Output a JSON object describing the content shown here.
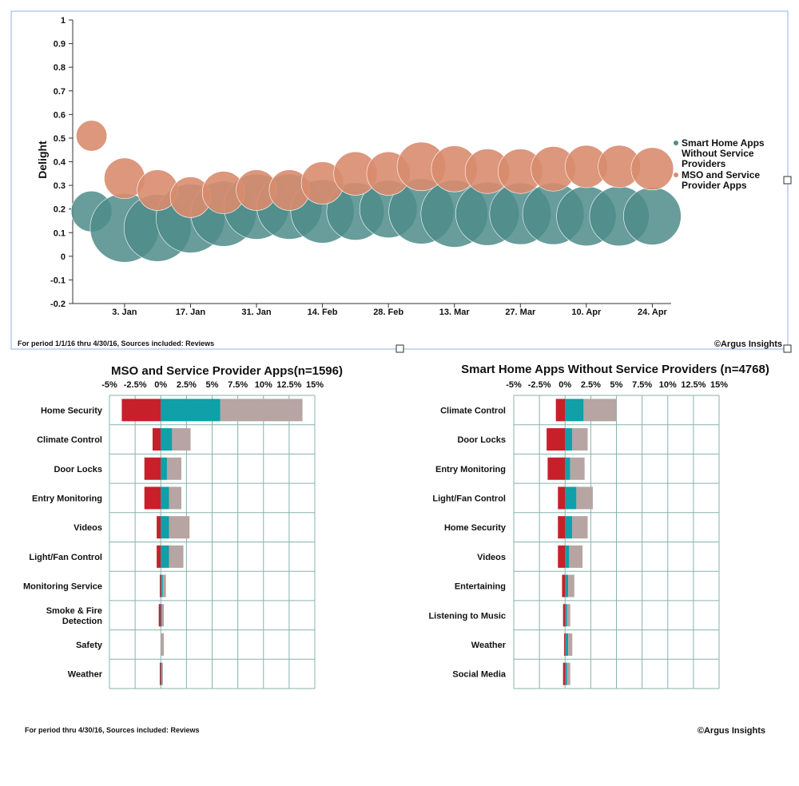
{
  "chart_data": [
    {
      "type": "scatter",
      "ylabel": "Delight",
      "yticks": [
        "1",
        "0.9",
        "0.8",
        "0.7",
        "0.6",
        "0.5",
        "0.4",
        "0.3",
        "0.2",
        "0.1",
        "0",
        "-0.1",
        "-0.2"
      ],
      "xticks": [
        "3. Jan",
        "17. Jan",
        "31. Jan",
        "14. Feb",
        "28. Feb",
        "13. Mar",
        "27. Mar",
        "10. Apr",
        "24. Apr"
      ],
      "ylim": [
        -0.2,
        1
      ],
      "grid": false,
      "legend_placement": "right",
      "series": [
        {
          "name": "Smart Home Apps Without Service Providers",
          "color": "#4e8c8a",
          "points": [
            {
              "x": "2015-12-27",
              "y": 0.19,
              "size": 0.35
            },
            {
              "x": "2016-01-03",
              "y": 0.12,
              "size": 1.0
            },
            {
              "x": "2016-01-10",
              "y": 0.12,
              "size": 0.95
            },
            {
              "x": "2016-01-17",
              "y": 0.16,
              "size": 1.0
            },
            {
              "x": "2016-01-24",
              "y": 0.18,
              "size": 0.9
            },
            {
              "x": "2016-01-31",
              "y": 0.21,
              "size": 0.9
            },
            {
              "x": "2016-02-07",
              "y": 0.21,
              "size": 0.9
            },
            {
              "x": "2016-02-14",
              "y": 0.19,
              "size": 0.85
            },
            {
              "x": "2016-02-21",
              "y": 0.19,
              "size": 0.7
            },
            {
              "x": "2016-02-28",
              "y": 0.2,
              "size": 0.7
            },
            {
              "x": "2016-03-06",
              "y": 0.19,
              "size": 0.9
            },
            {
              "x": "2016-03-13",
              "y": 0.18,
              "size": 0.95
            },
            {
              "x": "2016-03-20",
              "y": 0.18,
              "size": 0.85
            },
            {
              "x": "2016-03-27",
              "y": 0.18,
              "size": 0.8
            },
            {
              "x": "2016-04-03",
              "y": 0.18,
              "size": 0.8
            },
            {
              "x": "2016-04-10",
              "y": 0.17,
              "size": 0.75
            },
            {
              "x": "2016-04-17",
              "y": 0.17,
              "size": 0.75
            },
            {
              "x": "2016-04-24",
              "y": 0.17,
              "size": 0.7
            }
          ]
        },
        {
          "name": "MSO and Service Provider Apps",
          "color": "#d88c6e",
          "points": [
            {
              "x": "2015-12-27",
              "y": 0.51,
              "size": 0.2
            },
            {
              "x": "2016-01-03",
              "y": 0.33,
              "size": 0.35
            },
            {
              "x": "2016-01-10",
              "y": 0.28,
              "size": 0.35
            },
            {
              "x": "2016-01-17",
              "y": 0.25,
              "size": 0.35
            },
            {
              "x": "2016-01-24",
              "y": 0.27,
              "size": 0.38
            },
            {
              "x": "2016-01-31",
              "y": 0.28,
              "size": 0.35
            },
            {
              "x": "2016-02-07",
              "y": 0.28,
              "size": 0.35
            },
            {
              "x": "2016-02-14",
              "y": 0.31,
              "size": 0.38
            },
            {
              "x": "2016-02-21",
              "y": 0.35,
              "size": 0.4
            },
            {
              "x": "2016-02-28",
              "y": 0.35,
              "size": 0.4
            },
            {
              "x": "2016-03-06",
              "y": 0.38,
              "size": 0.5
            },
            {
              "x": "2016-03-13",
              "y": 0.37,
              "size": 0.45
            },
            {
              "x": "2016-03-20",
              "y": 0.36,
              "size": 0.42
            },
            {
              "x": "2016-03-27",
              "y": 0.36,
              "size": 0.42
            },
            {
              "x": "2016-04-03",
              "y": 0.37,
              "size": 0.42
            },
            {
              "x": "2016-04-10",
              "y": 0.38,
              "size": 0.38
            },
            {
              "x": "2016-04-17",
              "y": 0.38,
              "size": 0.38
            },
            {
              "x": "2016-04-24",
              "y": 0.37,
              "size": 0.38
            }
          ]
        }
      ],
      "footnote": "For period 1/1/16 thru 4/30/16, Sources included: Reviews",
      "copyright": "©Argus Insights"
    },
    {
      "type": "bar",
      "orientation": "horizontal",
      "stacked": true,
      "title": "MSO and Service Provider Apps(n=1596)",
      "xticks": [
        "-5%",
        "-2.5%",
        "0%",
        "2.5%",
        "5%",
        "7.5%",
        "10%",
        "12.5%",
        "15%"
      ],
      "xlim": [
        -5,
        15
      ],
      "grid": true,
      "categories": [
        "Home Security",
        "Climate Control",
        "Door Locks",
        "Entry Monitoring",
        "Videos",
        "Light/Fan Control",
        "Monitoring Service",
        "Smoke & Fire Detection",
        "Safety",
        "Weather"
      ],
      "category_lines": [
        [
          "Home Security"
        ],
        [
          "Climate Control"
        ],
        [
          "Door Locks"
        ],
        [
          "Entry Monitoring"
        ],
        [
          "Videos"
        ],
        [
          "Light/Fan Control"
        ],
        [
          "Monitoring Service"
        ],
        [
          "Smoke & Fire",
          "Detection"
        ],
        [
          "Safety"
        ],
        [
          "Weather"
        ]
      ],
      "series": [
        {
          "color": "#c8202b",
          "values": [
            -3.8,
            -0.8,
            -1.6,
            -1.6,
            -0.4,
            -0.4,
            -0.1,
            -0.2,
            0,
            -0.1
          ]
        },
        {
          "color": "#0fa0a8",
          "values": [
            5.8,
            1.1,
            0.6,
            0.8,
            0.8,
            0.8,
            0.2,
            0.1,
            0,
            0.1
          ]
        },
        {
          "color": "#b7a5a3",
          "values": [
            8.0,
            1.8,
            1.4,
            1.2,
            2.0,
            1.4,
            0.3,
            0.2,
            0.3,
            0.1
          ]
        }
      ]
    },
    {
      "type": "bar",
      "orientation": "horizontal",
      "stacked": true,
      "title": "Smart Home Apps Without Service Providers (n=4768)",
      "xticks": [
        "-5%",
        "-2.5%",
        "0%",
        "2.5%",
        "5%",
        "7.5%",
        "10%",
        "12.5%",
        "15%"
      ],
      "xlim": [
        -5,
        15
      ],
      "grid": true,
      "categories": [
        "Climate Control",
        "Door Locks",
        "Entry Monitoring",
        "Light/Fan Control",
        "Home Security",
        "Videos",
        "Entertaining",
        "Listening to Music",
        "Weather",
        "Social Media"
      ],
      "category_lines": [
        [
          "Climate Control"
        ],
        [
          "Door Locks"
        ],
        [
          "Entry Monitoring"
        ],
        [
          "Light/Fan Control"
        ],
        [
          "Home Security"
        ],
        [
          "Videos"
        ],
        [
          "Entertaining"
        ],
        [
          "Listening to Music"
        ],
        [
          "Weather"
        ],
        [
          "Social Media"
        ]
      ],
      "series": [
        {
          "color": "#c8202b",
          "values": [
            -0.9,
            -1.8,
            -1.7,
            -0.7,
            -0.7,
            -0.7,
            -0.3,
            -0.2,
            -0.1,
            -0.2
          ]
        },
        {
          "color": "#0fa0a8",
          "values": [
            1.8,
            0.7,
            0.5,
            1.1,
            0.7,
            0.4,
            0.3,
            0.2,
            0.3,
            0.2
          ]
        },
        {
          "color": "#b7a5a3",
          "values": [
            3.2,
            1.5,
            1.4,
            1.6,
            1.5,
            1.3,
            0.6,
            0.3,
            0.4,
            0.3
          ]
        }
      ]
    }
  ],
  "bottom_footnote": "For period thru 4/30/16, Sources included: Reviews",
  "bottom_copyright": "©Argus Insights"
}
